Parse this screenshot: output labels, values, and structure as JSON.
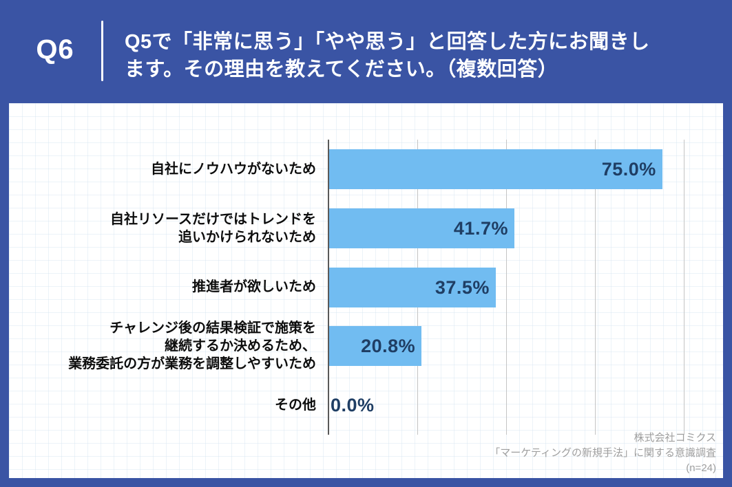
{
  "page": {
    "frame_color": "#3A54A4",
    "panel_color": "#FFFFFF"
  },
  "header": {
    "tag": "Q6",
    "question_lines": [
      "Q5で「非常に思う」「やや思う」と回答した方にお聞きし",
      "ます。その理由を教えてください。（複数回答）"
    ]
  },
  "chart_data": {
    "type": "bar",
    "orientation": "horizontal",
    "categories": [
      "自社にノウハウがないため",
      "自社リソースだけではトレンドを\n追いかけられないため",
      "推進者が欲しいため",
      "チャレンジ後の結果検証で施策を\n継続するか決めるため、\n業務委託の方が業務を調整しやすいため",
      "その他"
    ],
    "values": [
      75.0,
      41.7,
      37.5,
      20.8,
      0.0
    ],
    "value_labels": [
      "75.0%",
      "41.7%",
      "37.5%",
      "20.8%",
      "0.0%"
    ],
    "xlim": [
      0,
      100
    ],
    "gridline_interval": 20,
    "grid": true,
    "legend": false,
    "bar_color": "#71BCF1",
    "value_label_color": "#1F3E64",
    "category_label_color": "#0D0D0D",
    "axis_color": "#595959",
    "gridline_color": "#C4C4C4"
  },
  "footer": {
    "lines": [
      "株式会社コミクス",
      "「マーケティングの新規手法」に関する意識調査",
      "(n=24)"
    ],
    "color": "#9E9E9E"
  }
}
